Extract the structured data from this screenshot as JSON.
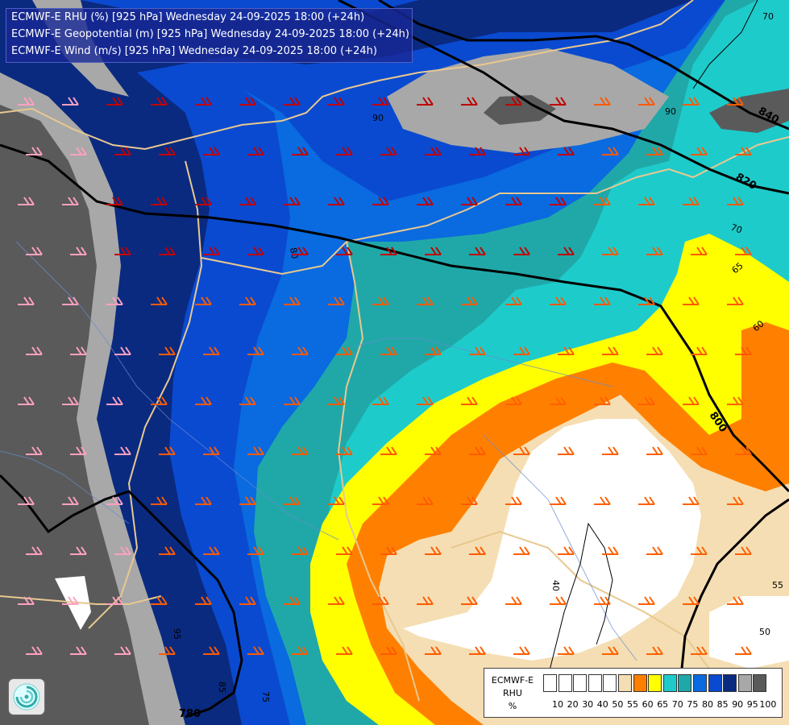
{
  "title": {
    "line1": "ECMWF-E RHU (%) [925 hPa] Wednesday 24-09-2025 18:00 (+24h)",
    "line2": "ECMWF-E Geopotential (m) [925 hPa] Wednesday 24-09-2025 18:00 (+24h)",
    "line3": "ECMWF-E Wind (m/s) [925 hPa] Wednesday 24-09-2025 18:00 (+24h)"
  },
  "legend": {
    "title_line1": "ECMWF-E",
    "title_line2": "RHU",
    "title_line3": "%",
    "swatches": [
      "#ffffff",
      "#ffffff",
      "#ffffff",
      "#ffffff",
      "#ffffff",
      "#f5deb3",
      "#ff8000",
      "#ffff00",
      "#1ecbcb",
      "#20a8a8",
      "#0a6ae0",
      "#0a4ad0",
      "#0a2a80",
      "#a8a8a8",
      "#5a5a5a"
    ],
    "ticks": [
      "10",
      "20",
      "30",
      "40",
      "50",
      "55",
      "60",
      "65",
      "70",
      "75",
      "80",
      "85",
      "90",
      "95",
      "100"
    ]
  },
  "contour_labels": {
    "geo_840": "840",
    "geo_820": "820",
    "geo_800": "800",
    "geo_780": "780",
    "rh_70a": "70",
    "rh_70b": "70",
    "rh_65": "65",
    "rh_60": "60",
    "rh_55": "55",
    "rh_50": "50",
    "rh_40": "40",
    "rh_80": "80",
    "rh_90a": "90",
    "rh_90b": "90",
    "rh_85": "85",
    "rh_95": "95",
    "rh_75": "75"
  },
  "colors": {
    "rh_95_100": "#5a5a5a",
    "rh_90_95": "#a8a8a8",
    "rh_85_90": "#0a2a80",
    "rh_80_85": "#0a4ad0",
    "rh_75_80": "#0a6ae0",
    "rh_70_75": "#20a8a8",
    "rh_65_70": "#1ecbcb",
    "rh_60_65": "#ffff00",
    "rh_55_60": "#ff8000",
    "rh_50_55": "#f5deb3",
    "rh_below_50": "#ffffff",
    "border": "#e8c890",
    "geopotential": "#000000"
  },
  "icons": {
    "logo": "ecmwf-swirl-logo"
  }
}
